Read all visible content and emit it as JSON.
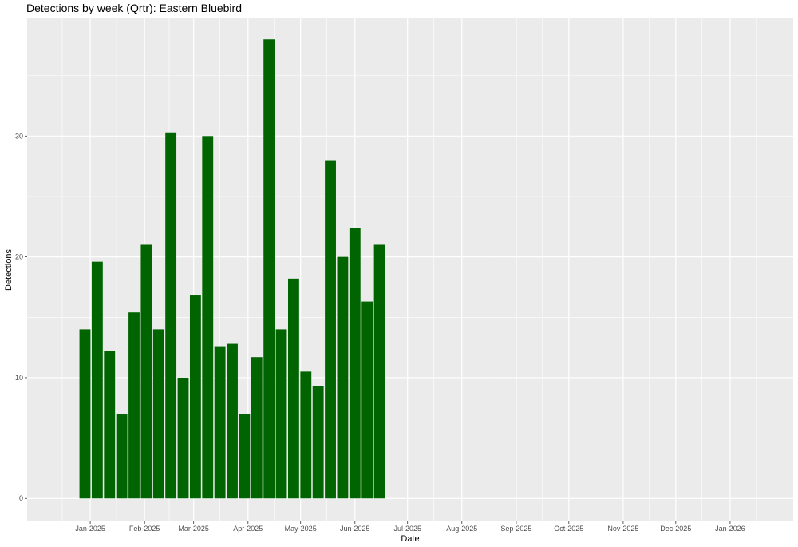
{
  "chart_data": {
    "type": "bar",
    "title": "Detections by week (Qrtr): Eastern Bluebird",
    "xlabel": "Date",
    "ylabel": "Detections",
    "bar_color": "#006400",
    "panel_color": "#ebebeb",
    "grid_color": "#ffffff",
    "grid": true,
    "x_range": [
      "2024-11-26",
      "2026-02-06"
    ],
    "ylim": [
      -1.9,
      39.8
    ],
    "y_ticks": [
      0,
      10,
      20,
      30
    ],
    "x_ticks": [
      {
        "date": "2025-01-01",
        "label": "Jan-2025"
      },
      {
        "date": "2025-02-01",
        "label": "Feb-2025"
      },
      {
        "date": "2025-03-01",
        "label": "Mar-2025"
      },
      {
        "date": "2025-04-01",
        "label": "Apr-2025"
      },
      {
        "date": "2025-05-01",
        "label": "May-2025"
      },
      {
        "date": "2025-06-01",
        "label": "Jun-2025"
      },
      {
        "date": "2025-07-01",
        "label": "Jul-2025"
      },
      {
        "date": "2025-08-01",
        "label": "Aug-2025"
      },
      {
        "date": "2025-09-01",
        "label": "Sep-2025"
      },
      {
        "date": "2025-10-01",
        "label": "Oct-2025"
      },
      {
        "date": "2025-11-01",
        "label": "Nov-2025"
      },
      {
        "date": "2025-12-01",
        "label": "Dec-2025"
      },
      {
        "date": "2026-01-01",
        "label": "Jan-2026"
      }
    ],
    "x_minor_gridlines": [
      "2024-12-16",
      "2025-01-16",
      "2025-02-15",
      "2025-03-16",
      "2025-04-16",
      "2025-05-16",
      "2025-06-16",
      "2025-07-16",
      "2025-08-16",
      "2025-09-16",
      "2025-10-16",
      "2025-11-16",
      "2025-12-16",
      "2026-01-16"
    ],
    "y_minor_gridlines": [
      5,
      15,
      25,
      35
    ],
    "bar_width_days": 6.3,
    "x": [
      "2024-12-29",
      "2025-01-05",
      "2025-01-12",
      "2025-01-19",
      "2025-01-26",
      "2025-02-02",
      "2025-02-09",
      "2025-02-16",
      "2025-02-23",
      "2025-03-02",
      "2025-03-09",
      "2025-03-16",
      "2025-03-23",
      "2025-03-30",
      "2025-04-06",
      "2025-04-13",
      "2025-04-20",
      "2025-04-27",
      "2025-05-04",
      "2025-05-11",
      "2025-05-18",
      "2025-05-25",
      "2025-06-01",
      "2025-06-08",
      "2025-06-15",
      "2025-06-22"
    ],
    "values": [
      14,
      19.6,
      12.2,
      7,
      15.4,
      21,
      14,
      30.3,
      10,
      16.8,
      30,
      12.6,
      12.8,
      7,
      11.7,
      38,
      14,
      18.2,
      10.5,
      9.3,
      28,
      20,
      22.4,
      16.3,
      21,
      0
    ]
  }
}
